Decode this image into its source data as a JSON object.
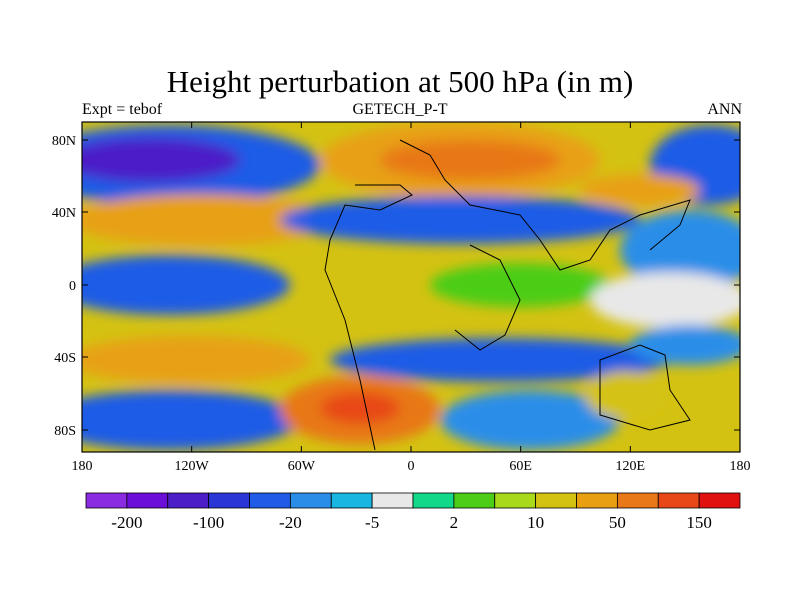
{
  "title": "Height perturbation at 500 hPa (in m)",
  "subtitle_left": "Expt = tebof",
  "subtitle_center": "GETECH_P-T",
  "subtitle_right": "ANN",
  "axes": {
    "x_ticks": [
      "180",
      "120W",
      "60W",
      "0",
      "60E",
      "120E",
      "180"
    ],
    "y_ticks": [
      "80N",
      "40N",
      "0",
      "40S",
      "80S"
    ]
  },
  "colorbar": {
    "colors": [
      "#8a2be2",
      "#6a0ed8",
      "#4b1ec8",
      "#2a37d6",
      "#1f5be6",
      "#2a8ee8",
      "#18b6e0",
      "#e8e8e8",
      "#12d98a",
      "#4ccd17",
      "#a8d91a",
      "#d4c212",
      "#e8a012",
      "#e87818",
      "#e84818",
      "#e01010"
    ],
    "labels": [
      "-200",
      "-100",
      "-20",
      "-5",
      "2",
      "10",
      "50",
      "150"
    ]
  }
}
